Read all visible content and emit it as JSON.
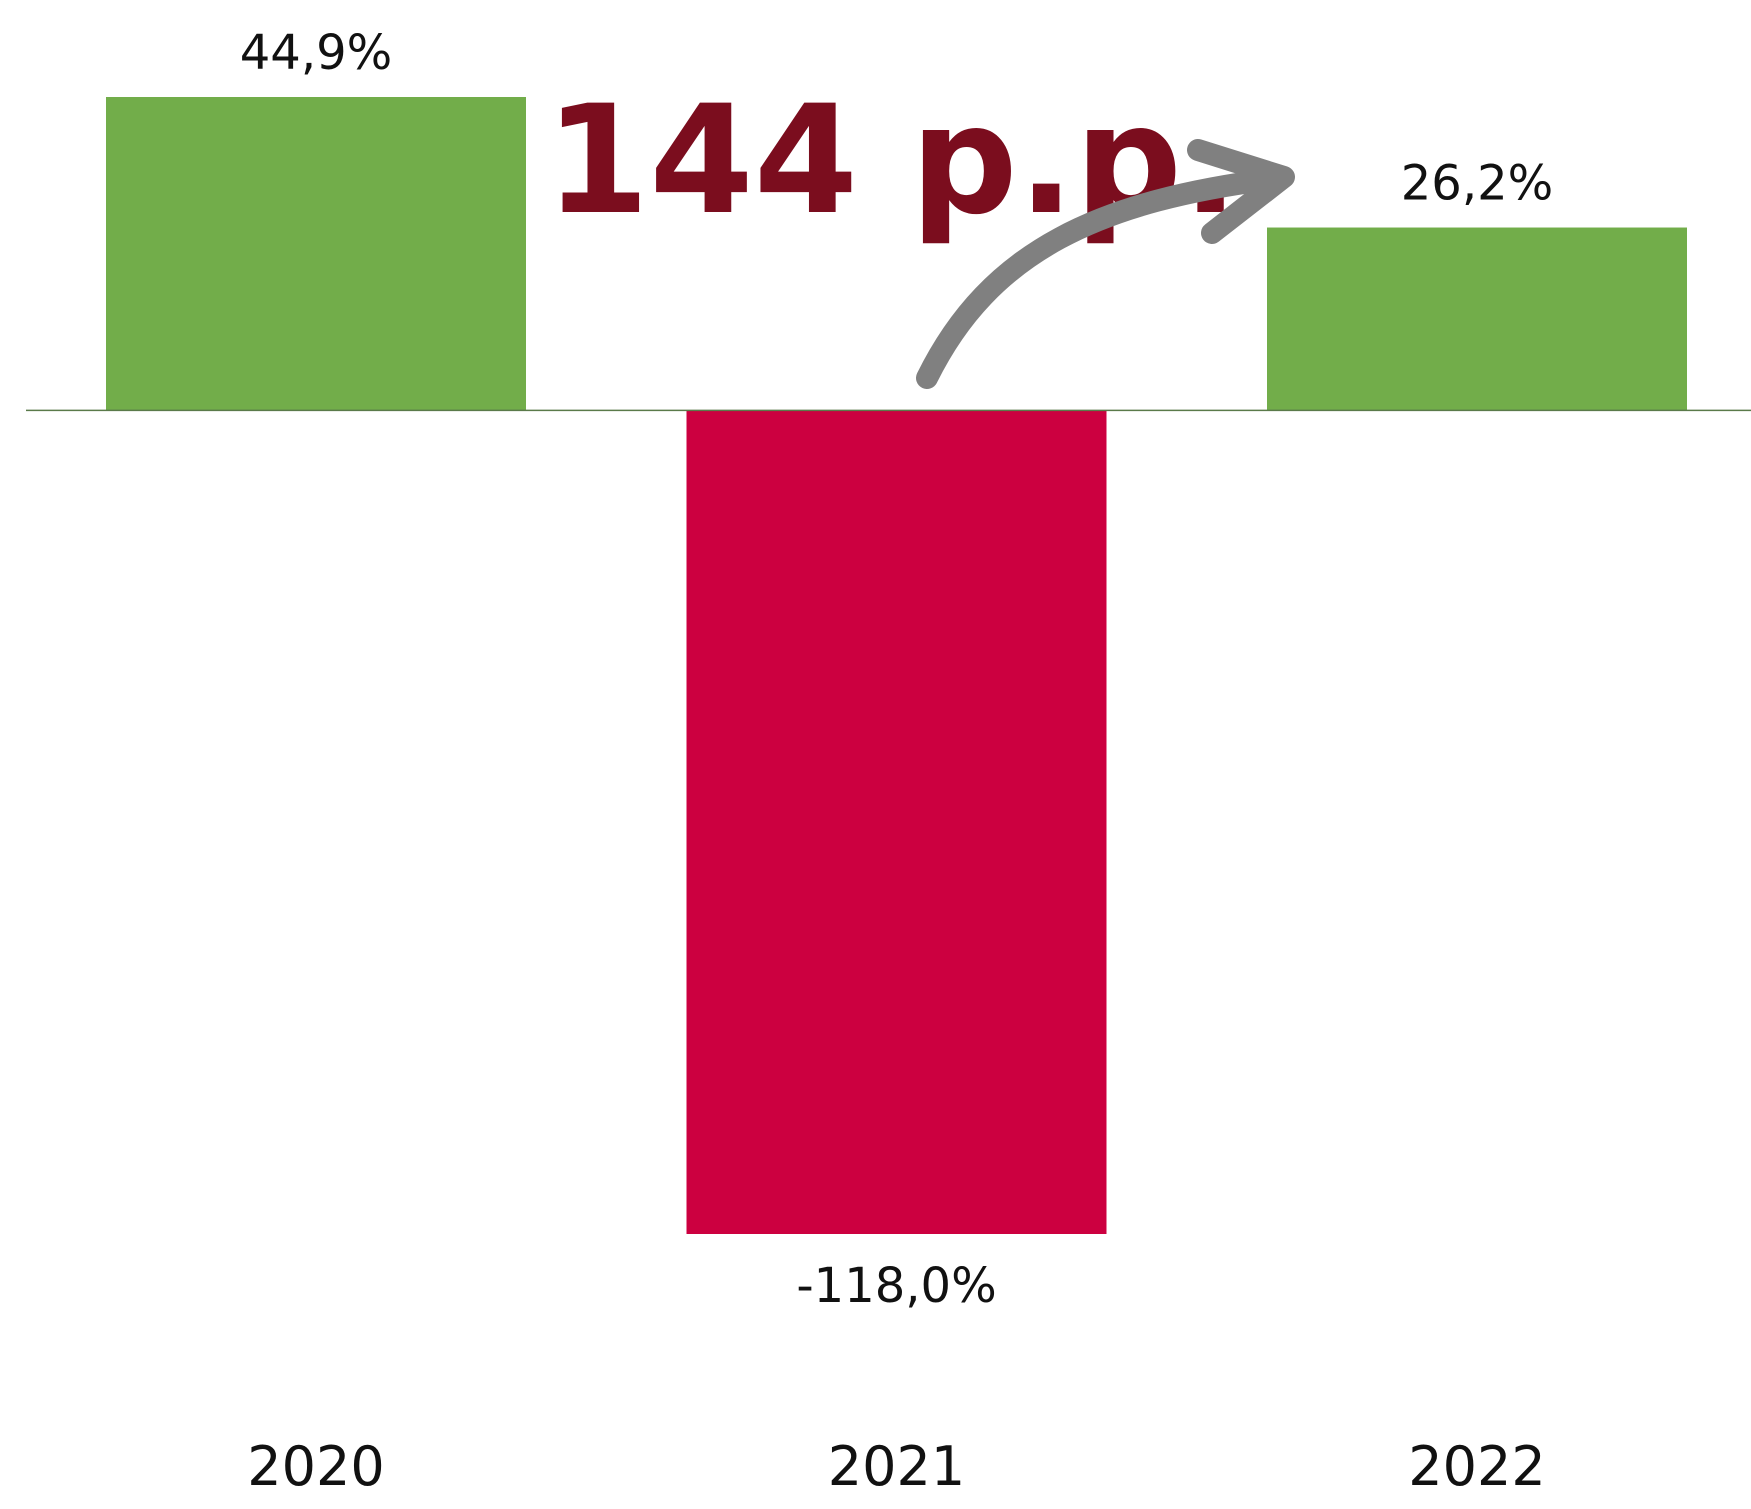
{
  "chart_data": {
    "type": "bar",
    "categories": [
      "2020",
      "2021",
      "2022"
    ],
    "values": [
      44.9,
      -118.0,
      26.2
    ],
    "value_labels": [
      "44,9%",
      "-118,0%",
      "26,2%"
    ],
    "colors": [
      "#72ad4a",
      "#cc0040",
      "#72ad4a"
    ],
    "annotation": "144 p.p."
  }
}
